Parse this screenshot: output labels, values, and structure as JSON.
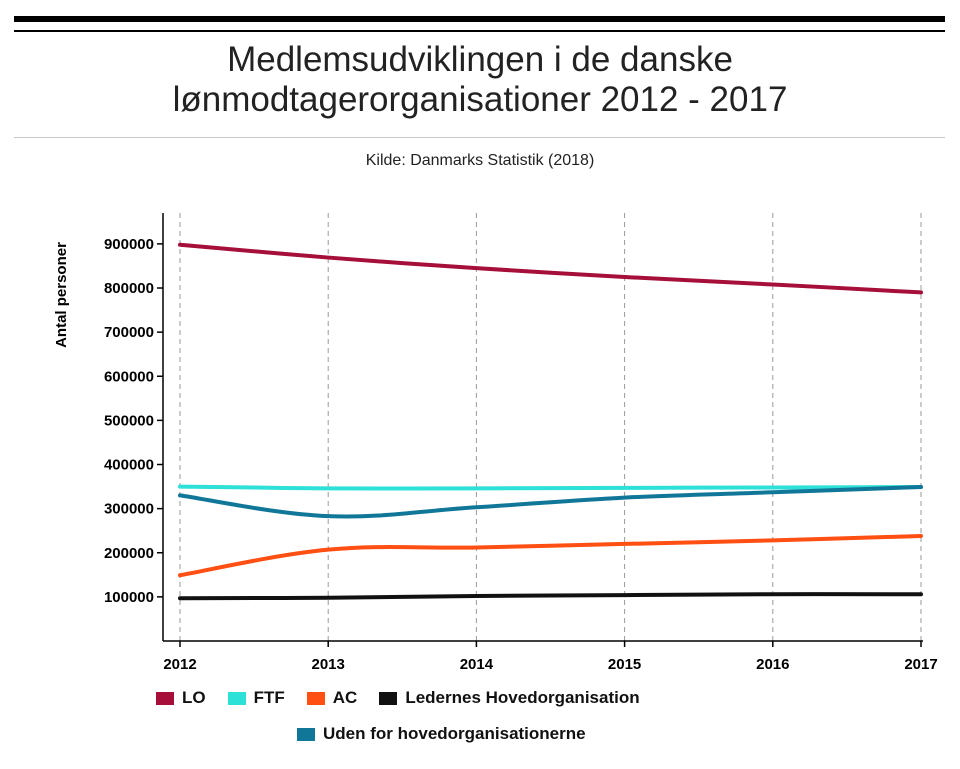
{
  "header": {
    "title_line1": "Medlemsudviklingen i de danske",
    "title_line2": "lønmodtagerorganisationer 2012 - 2017",
    "subtitle": "Kilde: Danmarks Statistik (2018)"
  },
  "chart_data": {
    "type": "line",
    "title": "Medlemsudviklingen i de danske lønmodtagerorganisationer 2012 - 2017",
    "subtitle": "Kilde: Danmarks Statistik (2018)",
    "xlabel": "",
    "ylabel": "Antal personer",
    "x": [
      2012,
      2013,
      2014,
      2015,
      2016,
      2017
    ],
    "x_tick_labels": [
      "2012",
      "2013",
      "2014",
      "2015",
      "2016",
      "2017"
    ],
    "y_tick_values": [
      100000,
      200000,
      300000,
      400000,
      500000,
      600000,
      700000,
      800000,
      900000
    ],
    "y_tick_labels": [
      "100000",
      "200000",
      "300000",
      "400000",
      "500000",
      "600000",
      "700000",
      "800000",
      "900000"
    ],
    "xlim": [
      2012,
      2017
    ],
    "ylim": [
      0,
      970000
    ],
    "grid": "vertical dashed",
    "legend_position": "bottom",
    "series": [
      {
        "name": "LO",
        "color": "#a50f3a",
        "values": [
          898000,
          869000,
          845000,
          825000,
          808000,
          790000
        ]
      },
      {
        "name": "FTF",
        "color": "#2de0d8",
        "values": [
          350000,
          346000,
          346000,
          347000,
          348000,
          349000
        ]
      },
      {
        "name": "AC",
        "color": "#ff4f12",
        "values": [
          149000,
          207000,
          212000,
          220000,
          228000,
          238000
        ]
      },
      {
        "name": "Ledernes Hovedorganisation",
        "color": "#111111",
        "values": [
          97000,
          98000,
          102000,
          104000,
          106000,
          106000
        ]
      },
      {
        "name": "Uden for hovedorganisationerne",
        "color": "#117799",
        "values": [
          330000,
          283000,
          303000,
          325000,
          337000,
          349000
        ]
      }
    ]
  }
}
